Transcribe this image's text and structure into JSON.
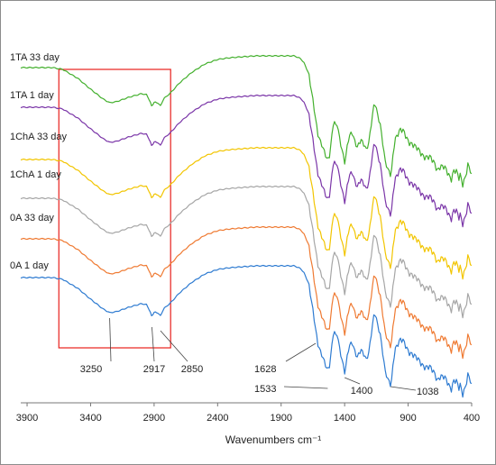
{
  "chart_data": {
    "type": "line",
    "xlabel": "Wavenumbers cm⁻¹",
    "xlim": [
      3950,
      400
    ],
    "x_reversed": true,
    "x_ticks": [
      3900,
      3400,
      2900,
      2400,
      1900,
      1400,
      900,
      400
    ],
    "grid": false,
    "legend": "none",
    "highlight_box": {
      "x_range": [
        3650,
        2770
      ],
      "color": "#e8201c"
    },
    "series": [
      {
        "name": "1TA 33 day",
        "color": "#44b02e"
      },
      {
        "name": "1TA 1 day",
        "color": "#7b36a8"
      },
      {
        "name": "1ChA 33 day",
        "color": "#f2c500"
      },
      {
        "name": "1ChA 1 day",
        "color": "#a6a6a6"
      },
      {
        "name": "0A 33 day",
        "color": "#ef7a32"
      },
      {
        "name": "0A 1 day",
        "color": "#2e7bd1"
      }
    ],
    "peak_annotations": [
      {
        "label": "3250",
        "x": 3250,
        "color": "#e8201c"
      },
      {
        "label": "2917",
        "x": 2917,
        "color": "#222222"
      },
      {
        "label": "2850",
        "x": 2850,
        "color": "#222222"
      },
      {
        "label": "1628",
        "x": 1628,
        "color": "#222222"
      },
      {
        "label": "1533",
        "x": 1533,
        "color": "#222222"
      },
      {
        "label": "1400",
        "x": 1400,
        "color": "#222222"
      },
      {
        "label": "1038",
        "x": 1038,
        "color": "#222222"
      }
    ]
  }
}
